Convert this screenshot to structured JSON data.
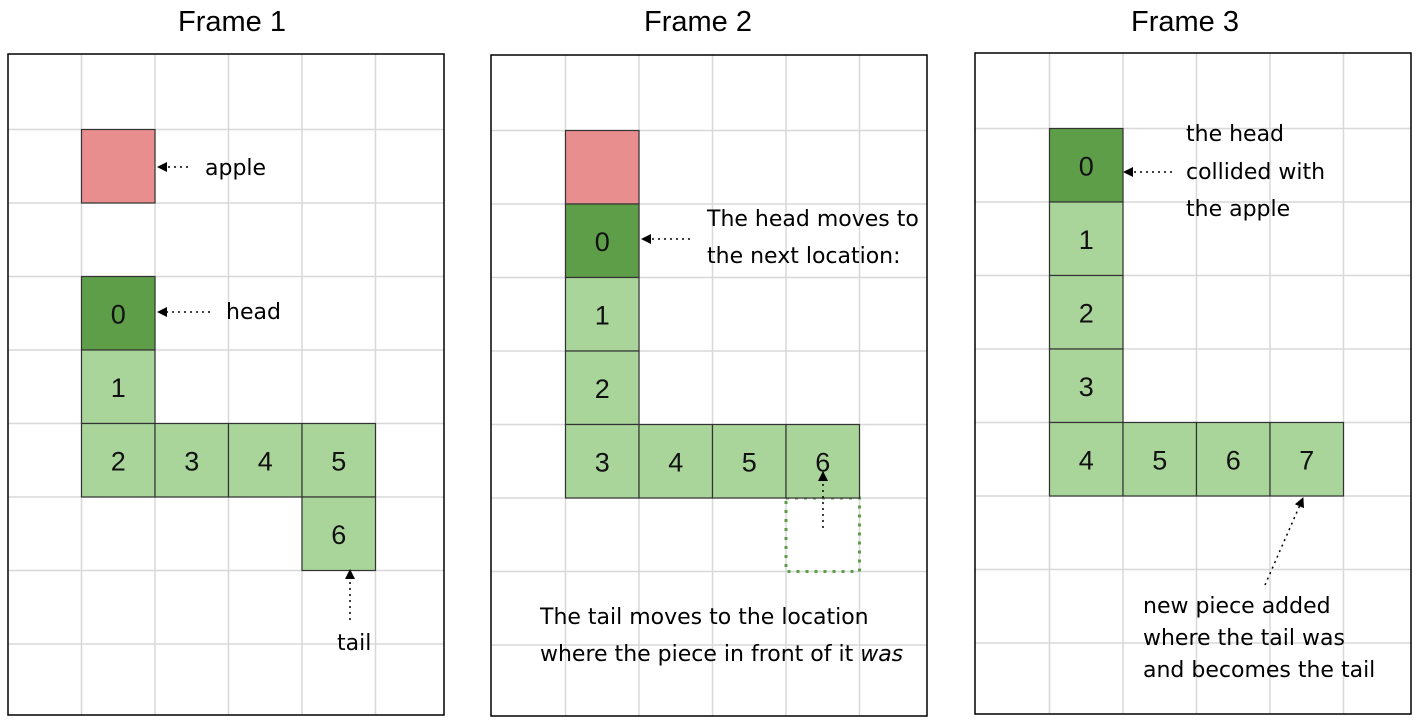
{
  "colors": {
    "grid": "#d8d8d8",
    "border": "#000000",
    "apple": "#e88e8e",
    "head": "#5e9e48",
    "body": "#a9d49a",
    "outline": "#555555",
    "dotted_tail": "#5e9e48"
  },
  "frames": [
    {
      "title": "Frame 1",
      "apple": {
        "col": 1,
        "row": 1
      },
      "segments": [
        {
          "label": "0",
          "col": 1,
          "row": 3,
          "kind": "head"
        },
        {
          "label": "1",
          "col": 1,
          "row": 4,
          "kind": "body"
        },
        {
          "label": "2",
          "col": 1,
          "row": 5,
          "kind": "body"
        },
        {
          "label": "3",
          "col": 2,
          "row": 5,
          "kind": "body"
        },
        {
          "label": "4",
          "col": 3,
          "row": 5,
          "kind": "body"
        },
        {
          "label": "5",
          "col": 4,
          "row": 5,
          "kind": "body"
        },
        {
          "label": "6",
          "col": 4,
          "row": 6,
          "kind": "body"
        }
      ],
      "annotations": [
        {
          "name": "apple-label",
          "lines": [
            "apple"
          ]
        },
        {
          "name": "head-label",
          "lines": [
            "head"
          ]
        },
        {
          "name": "tail-label",
          "lines": [
            "tail"
          ]
        }
      ]
    },
    {
      "title": "Frame 2",
      "apple": {
        "col": 1,
        "row": 1
      },
      "segments": [
        {
          "label": "0",
          "col": 1,
          "row": 2,
          "kind": "head"
        },
        {
          "label": "1",
          "col": 1,
          "row": 3,
          "kind": "body"
        },
        {
          "label": "2",
          "col": 1,
          "row": 4,
          "kind": "body"
        },
        {
          "label": "3",
          "col": 1,
          "row": 5,
          "kind": "body"
        },
        {
          "label": "4",
          "col": 2,
          "row": 5,
          "kind": "body"
        },
        {
          "label": "5",
          "col": 3,
          "row": 5,
          "kind": "body"
        },
        {
          "label": "6",
          "col": 4,
          "row": 5,
          "kind": "body"
        }
      ],
      "ghost_tail": {
        "col": 4,
        "row": 6
      },
      "annotations": [
        {
          "name": "head-moves-label",
          "lines": [
            "The head moves to",
            "the next location:"
          ]
        },
        {
          "name": "tail-moves-label",
          "lines": [
            "The tail moves to the location",
            "where the piece in front of it "
          ],
          "emphasis": "was"
        }
      ]
    },
    {
      "title": "Frame 3",
      "segments": [
        {
          "label": "0",
          "col": 1,
          "row": 1,
          "kind": "head"
        },
        {
          "label": "1",
          "col": 1,
          "row": 2,
          "kind": "body"
        },
        {
          "label": "2",
          "col": 1,
          "row": 3,
          "kind": "body"
        },
        {
          "label": "3",
          "col": 1,
          "row": 4,
          "kind": "body"
        },
        {
          "label": "4",
          "col": 1,
          "row": 5,
          "kind": "body"
        },
        {
          "label": "5",
          "col": 2,
          "row": 5,
          "kind": "body"
        },
        {
          "label": "6",
          "col": 3,
          "row": 5,
          "kind": "body"
        },
        {
          "label": "7",
          "col": 4,
          "row": 5,
          "kind": "body"
        }
      ],
      "annotations": [
        {
          "name": "collision-label",
          "lines": [
            "the head",
            "collided with",
            "the apple"
          ]
        },
        {
          "name": "new-piece-label",
          "lines": [
            "new piece added",
            "where the tail was",
            "and becomes the tail"
          ]
        }
      ]
    }
  ]
}
